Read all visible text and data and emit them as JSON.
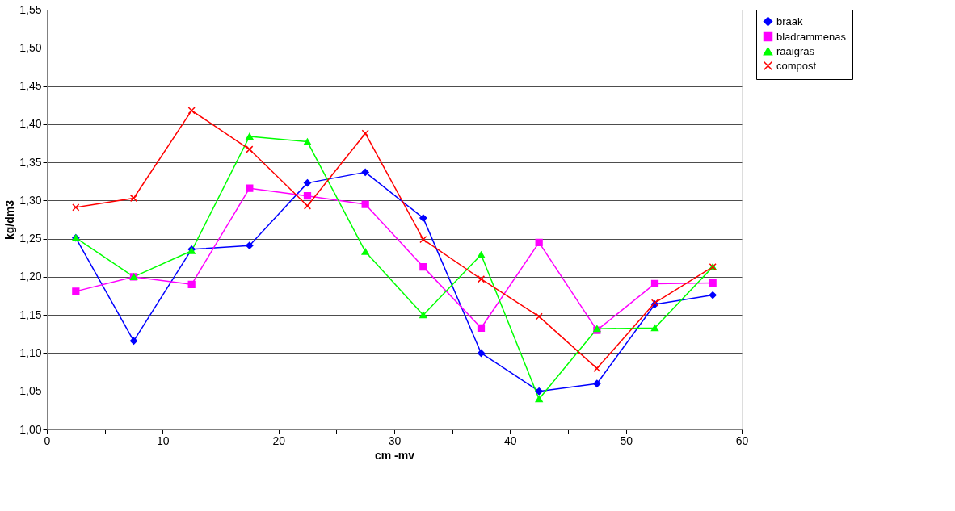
{
  "chart_data": {
    "type": "line",
    "xlabel": "cm -mv",
    "ylabel": "kg/dm3",
    "x": [
      2.5,
      7.5,
      12.5,
      17.5,
      22.5,
      27.5,
      32.5,
      37.5,
      42.5,
      47.5,
      52.5,
      57.5
    ],
    "series": [
      {
        "name": "braak",
        "color": "#0000ff",
        "marker": "diamond",
        "values": [
          1.251,
          1.116,
          1.236,
          1.241,
          1.323,
          1.337,
          1.277,
          1.1,
          1.05,
          1.06,
          1.164,
          1.176
        ]
      },
      {
        "name": "bladrammenas",
        "color": "#ff00ff",
        "marker": "square",
        "values": [
          1.181,
          1.2,
          1.19,
          1.316,
          1.306,
          1.295,
          1.213,
          1.133,
          1.245,
          1.13,
          1.191,
          1.192
        ]
      },
      {
        "name": "raaigras",
        "color": "#00ff00",
        "marker": "triangle",
        "values": [
          1.251,
          1.2,
          1.234,
          1.384,
          1.377,
          1.233,
          1.15,
          1.229,
          1.04,
          1.132,
          1.133,
          1.213
        ]
      },
      {
        "name": "compost",
        "color": "#ff0000",
        "marker": "cross",
        "values": [
          1.291,
          1.303,
          1.418,
          1.367,
          1.293,
          1.388,
          1.249,
          1.197,
          1.148,
          1.08,
          1.166,
          1.213
        ]
      }
    ],
    "xlim": [
      0,
      60
    ],
    "xticks": [
      0,
      {
        "value": 5,
        "label": null
      },
      10,
      {
        "value": 15,
        "label": null
      },
      20,
      {
        "value": 25,
        "label": null
      },
      30,
      {
        "value": 35,
        "label": null
      },
      40,
      {
        "value": 45,
        "label": null
      },
      50,
      {
        "value": 55,
        "label": null
      },
      60
    ],
    "ylim": [
      1.0,
      1.55
    ],
    "yticks": [
      {
        "value": 1.0,
        "label": "1,00"
      },
      {
        "value": 1.05,
        "label": "1,05"
      },
      {
        "value": 1.1,
        "label": "1,10"
      },
      {
        "value": 1.15,
        "label": "1,15"
      },
      {
        "value": 1.2,
        "label": "1,20"
      },
      {
        "value": 1.25,
        "label": "1,25"
      },
      {
        "value": 1.3,
        "label": "1,30"
      },
      {
        "value": 1.35,
        "label": "1,35"
      },
      {
        "value": 1.4,
        "label": "1,40"
      },
      {
        "value": 1.45,
        "label": "1,45"
      },
      {
        "value": 1.5,
        "label": "1,50"
      },
      {
        "value": 1.55,
        "label": "1,55"
      }
    ],
    "grid": "y",
    "legend": "right",
    "line_style": "solid"
  }
}
